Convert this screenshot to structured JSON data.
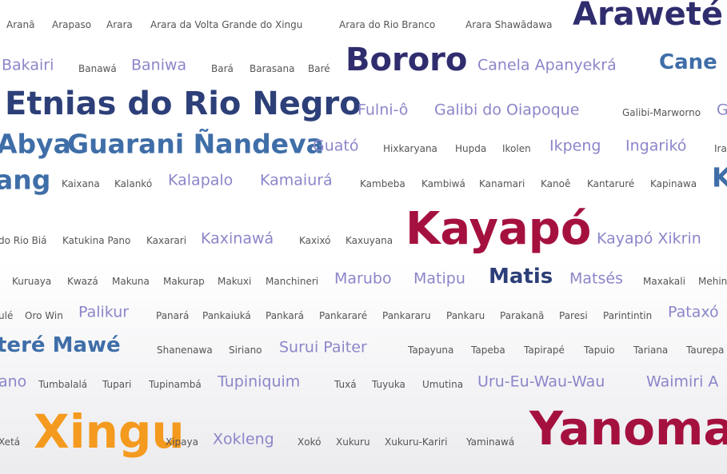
{
  "colors": {
    "gray": "#555555",
    "lavender": "#8b86c9",
    "steel": "#3f6ea8",
    "navy": "#2d3f78",
    "indigo": "#2f2d6e",
    "crimson": "#a5113f",
    "orange": "#f49a1e"
  },
  "terms": [
    {
      "label": "Aranã",
      "size": "s1",
      "color": "gray"
    },
    {
      "label": "Arapaso",
      "size": "s1",
      "color": "gray"
    },
    {
      "label": "Arara",
      "size": "s1",
      "color": "gray"
    },
    {
      "label": "Arara da Volta Grande do Xingu",
      "size": "s1",
      "color": "gray"
    },
    {
      "label": "Arara do Rio Branco",
      "size": "s1",
      "color": "gray"
    },
    {
      "label": "Arara Shawãdawa",
      "size": "s1",
      "color": "gray"
    },
    {
      "label": "Araweté",
      "size": "s6",
      "color": "indigo"
    },
    {
      "label": "Bakairi",
      "size": "s2",
      "color": "lavender"
    },
    {
      "label": "Banawá",
      "size": "s1",
      "color": "gray"
    },
    {
      "label": "Baniwa",
      "size": "s2",
      "color": "lavender"
    },
    {
      "label": "Bará",
      "size": "s1",
      "color": "gray"
    },
    {
      "label": "Barasana",
      "size": "s1",
      "color": "gray"
    },
    {
      "label": "Baré",
      "size": "s1",
      "color": "gray"
    },
    {
      "label": "Bororo",
      "size": "s6",
      "color": "indigo"
    },
    {
      "label": "Canela Apanyekrá",
      "size": "s2",
      "color": "lavender"
    },
    {
      "label": "Cane",
      "size": "s4",
      "color": "steel"
    },
    {
      "label": "Etnias do Rio Negro",
      "size": "s6",
      "color": "navy"
    },
    {
      "label": "Fulni-ô",
      "size": "s2",
      "color": "lavender"
    },
    {
      "label": "Galibi do Oiapoque",
      "size": "s2",
      "color": "lavender"
    },
    {
      "label": "Galibi-Marworno",
      "size": "s1",
      "color": "gray"
    },
    {
      "label": "G",
      "size": "s2",
      "color": "lavender"
    },
    {
      "label": "Abya",
      "size": "s5",
      "color": "steel"
    },
    {
      "label": "Guarani Ñandeva",
      "size": "s5",
      "color": "steel"
    },
    {
      "label": "Guató",
      "size": "s2",
      "color": "lavender"
    },
    {
      "label": "Hixkaryana",
      "size": "s1",
      "color": "gray"
    },
    {
      "label": "Hupda",
      "size": "s1",
      "color": "gray"
    },
    {
      "label": "Ikolen",
      "size": "s1",
      "color": "gray"
    },
    {
      "label": "Ikpeng",
      "size": "s2",
      "color": "lavender"
    },
    {
      "label": "Ingarikó",
      "size": "s2",
      "color": "lavender"
    },
    {
      "label": "Ira",
      "size": "s1",
      "color": "gray"
    },
    {
      "label": "ang",
      "size": "s5",
      "color": "steel"
    },
    {
      "label": "Kaixana",
      "size": "s1",
      "color": "gray"
    },
    {
      "label": "Kalankó",
      "size": "s1",
      "color": "gray"
    },
    {
      "label": "Kalapalo",
      "size": "s2",
      "color": "lavender"
    },
    {
      "label": "Kamaiurá",
      "size": "s2",
      "color": "lavender"
    },
    {
      "label": "Kambeba",
      "size": "s1",
      "color": "gray"
    },
    {
      "label": "Kambiwá",
      "size": "s1",
      "color": "gray"
    },
    {
      "label": "Kanamari",
      "size": "s1",
      "color": "gray"
    },
    {
      "label": "Kanoê",
      "size": "s1",
      "color": "gray"
    },
    {
      "label": "Kantaruré",
      "size": "s1",
      "color": "gray"
    },
    {
      "label": "Kapinawa",
      "size": "s1",
      "color": "gray"
    },
    {
      "label": "K",
      "size": "s5",
      "color": "steel"
    },
    {
      "label": "do Rio Biá",
      "size": "s1",
      "color": "gray"
    },
    {
      "label": "Katukina Pano",
      "size": "s1",
      "color": "gray"
    },
    {
      "label": "Kaxarari",
      "size": "s1",
      "color": "gray"
    },
    {
      "label": "Kaxinawá",
      "size": "s2",
      "color": "lavender"
    },
    {
      "label": "Kaxixó",
      "size": "s1",
      "color": "gray"
    },
    {
      "label": "Kaxuyana",
      "size": "s1",
      "color": "gray"
    },
    {
      "label": "Kayapó",
      "size": "s7",
      "color": "crimson"
    },
    {
      "label": "Kayapó Xikrin",
      "size": "s2",
      "color": "lavender"
    },
    {
      "label": "Kuruaya",
      "size": "s1",
      "color": "gray"
    },
    {
      "label": "Kwazá",
      "size": "s1",
      "color": "gray"
    },
    {
      "label": "Makuna",
      "size": "s1",
      "color": "gray"
    },
    {
      "label": "Makurap",
      "size": "s1",
      "color": "gray"
    },
    {
      "label": "Makuxi",
      "size": "s1",
      "color": "gray"
    },
    {
      "label": "Manchineri",
      "size": "s1",
      "color": "gray"
    },
    {
      "label": "Marubo",
      "size": "s2",
      "color": "lavender"
    },
    {
      "label": "Matipu",
      "size": "s2",
      "color": "lavender"
    },
    {
      "label": "Matis",
      "size": "s4",
      "color": "navy"
    },
    {
      "label": "Matsés",
      "size": "s2",
      "color": "lavender"
    },
    {
      "label": "Maxakali",
      "size": "s1",
      "color": "gray"
    },
    {
      "label": "Mehin",
      "size": "s1",
      "color": "gray"
    },
    {
      "label": "ulé",
      "size": "s1",
      "color": "gray"
    },
    {
      "label": "Oro Win",
      "size": "s1",
      "color": "gray"
    },
    {
      "label": "Palikur",
      "size": "s2",
      "color": "lavender"
    },
    {
      "label": "Panará",
      "size": "s1",
      "color": "gray"
    },
    {
      "label": "Pankaiuká",
      "size": "s1",
      "color": "gray"
    },
    {
      "label": "Pankará",
      "size": "s1",
      "color": "gray"
    },
    {
      "label": "Pankararé",
      "size": "s1",
      "color": "gray"
    },
    {
      "label": "Pankararu",
      "size": "s1",
      "color": "gray"
    },
    {
      "label": "Pankaru",
      "size": "s1",
      "color": "gray"
    },
    {
      "label": "Parakanã",
      "size": "s1",
      "color": "gray"
    },
    {
      "label": "Paresi",
      "size": "s1",
      "color": "gray"
    },
    {
      "label": "Parintintin",
      "size": "s1",
      "color": "gray"
    },
    {
      "label": "Pataxó",
      "size": "s2",
      "color": "lavender"
    },
    {
      "label": "teré Mawé",
      "size": "s4",
      "color": "steel"
    },
    {
      "label": "Shanenawa",
      "size": "s1",
      "color": "gray"
    },
    {
      "label": "Siriano",
      "size": "s1",
      "color": "gray"
    },
    {
      "label": "Surui Paiter",
      "size": "s2",
      "color": "lavender"
    },
    {
      "label": "Tapayuna",
      "size": "s1",
      "color": "gray"
    },
    {
      "label": "Tapeba",
      "size": "s1",
      "color": "gray"
    },
    {
      "label": "Tapirapé",
      "size": "s1",
      "color": "gray"
    },
    {
      "label": "Tapuio",
      "size": "s1",
      "color": "gray"
    },
    {
      "label": "Tariana",
      "size": "s1",
      "color": "gray"
    },
    {
      "label": "Taurepa",
      "size": "s1",
      "color": "gray"
    },
    {
      "label": "ano",
      "size": "s2",
      "color": "lavender"
    },
    {
      "label": "Tumbalalá",
      "size": "s1",
      "color": "gray"
    },
    {
      "label": "Tupari",
      "size": "s1",
      "color": "gray"
    },
    {
      "label": "Tupinambá",
      "size": "s1",
      "color": "gray"
    },
    {
      "label": "Tupiniquim",
      "size": "s2",
      "color": "lavender"
    },
    {
      "label": "Tuxá",
      "size": "s1",
      "color": "gray"
    },
    {
      "label": "Tuyuka",
      "size": "s1",
      "color": "gray"
    },
    {
      "label": "Umutina",
      "size": "s1",
      "color": "gray"
    },
    {
      "label": "Uru-Eu-Wau-Wau",
      "size": "s2",
      "color": "lavender"
    },
    {
      "label": "Waimiri A",
      "size": "s2",
      "color": "lavender"
    },
    {
      "label": "Xetá",
      "size": "s1",
      "color": "gray"
    },
    {
      "label": "Xingu",
      "size": "s8",
      "color": "orange"
    },
    {
      "label": "Xipaya",
      "size": "s1",
      "color": "gray"
    },
    {
      "label": "Xokleng",
      "size": "s2",
      "color": "lavender"
    },
    {
      "label": "Xokó",
      "size": "s1",
      "color": "gray"
    },
    {
      "label": "Xukuru",
      "size": "s1",
      "color": "gray"
    },
    {
      "label": "Xukuru-Kariri",
      "size": "s1",
      "color": "gray"
    },
    {
      "label": "Yaminawá",
      "size": "s1",
      "color": "gray"
    },
    {
      "label": "Yanoma",
      "size": "s8",
      "color": "crimson"
    }
  ]
}
